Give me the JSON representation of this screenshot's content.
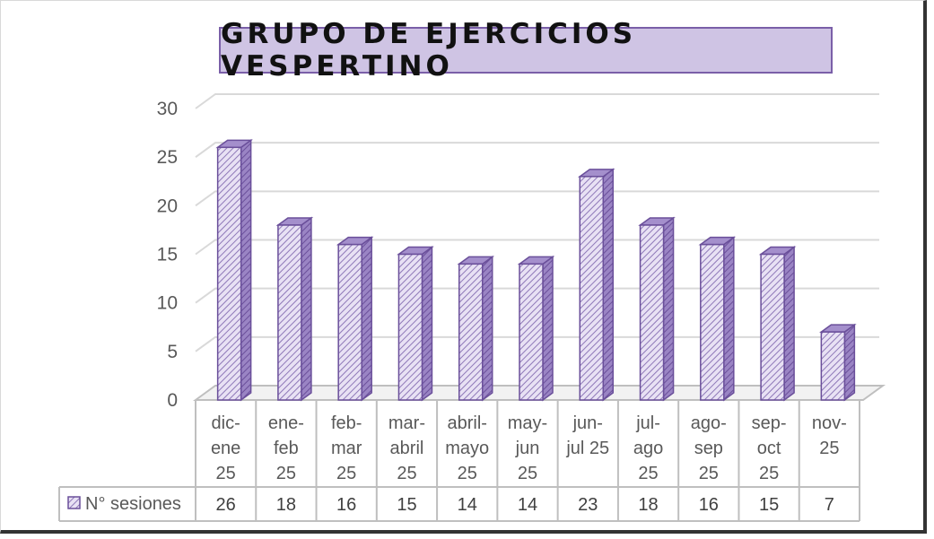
{
  "chart_data": {
    "type": "bar",
    "title": "GRUPO DE EJERCICIOS VESPERTINO",
    "categories": [
      [
        "dic-",
        "ene",
        "25"
      ],
      [
        "ene-",
        "feb",
        "25"
      ],
      [
        "feb-",
        "mar",
        "25"
      ],
      [
        "mar-",
        "abril",
        "25"
      ],
      [
        "abril-",
        "mayo",
        "25"
      ],
      [
        "may-",
        "jun",
        "25"
      ],
      [
        "jun-",
        "jul 25"
      ],
      [
        "jul-",
        "ago",
        "25"
      ],
      [
        "ago-",
        "sep",
        "25"
      ],
      [
        "sep-",
        "oct",
        "25"
      ],
      [
        "nov-",
        "25"
      ]
    ],
    "series": [
      {
        "name": "N° sesiones",
        "values": [
          26,
          18,
          16,
          15,
          14,
          14,
          23,
          18,
          16,
          15,
          7
        ]
      }
    ],
    "yticks": [
      "0",
      "5",
      "10",
      "15",
      "20",
      "25",
      "30"
    ],
    "ylim": [
      0,
      30
    ],
    "grid": true,
    "legend": "data-table",
    "colors": {
      "bar_fill": "#e4dcf1",
      "bar_hatch": "#8e78b8",
      "bar_edge": "#6a4f9a",
      "bar_side": "#7d62ae",
      "bar_top": "#a48fcc",
      "grid": "#d9d9d9"
    }
  }
}
